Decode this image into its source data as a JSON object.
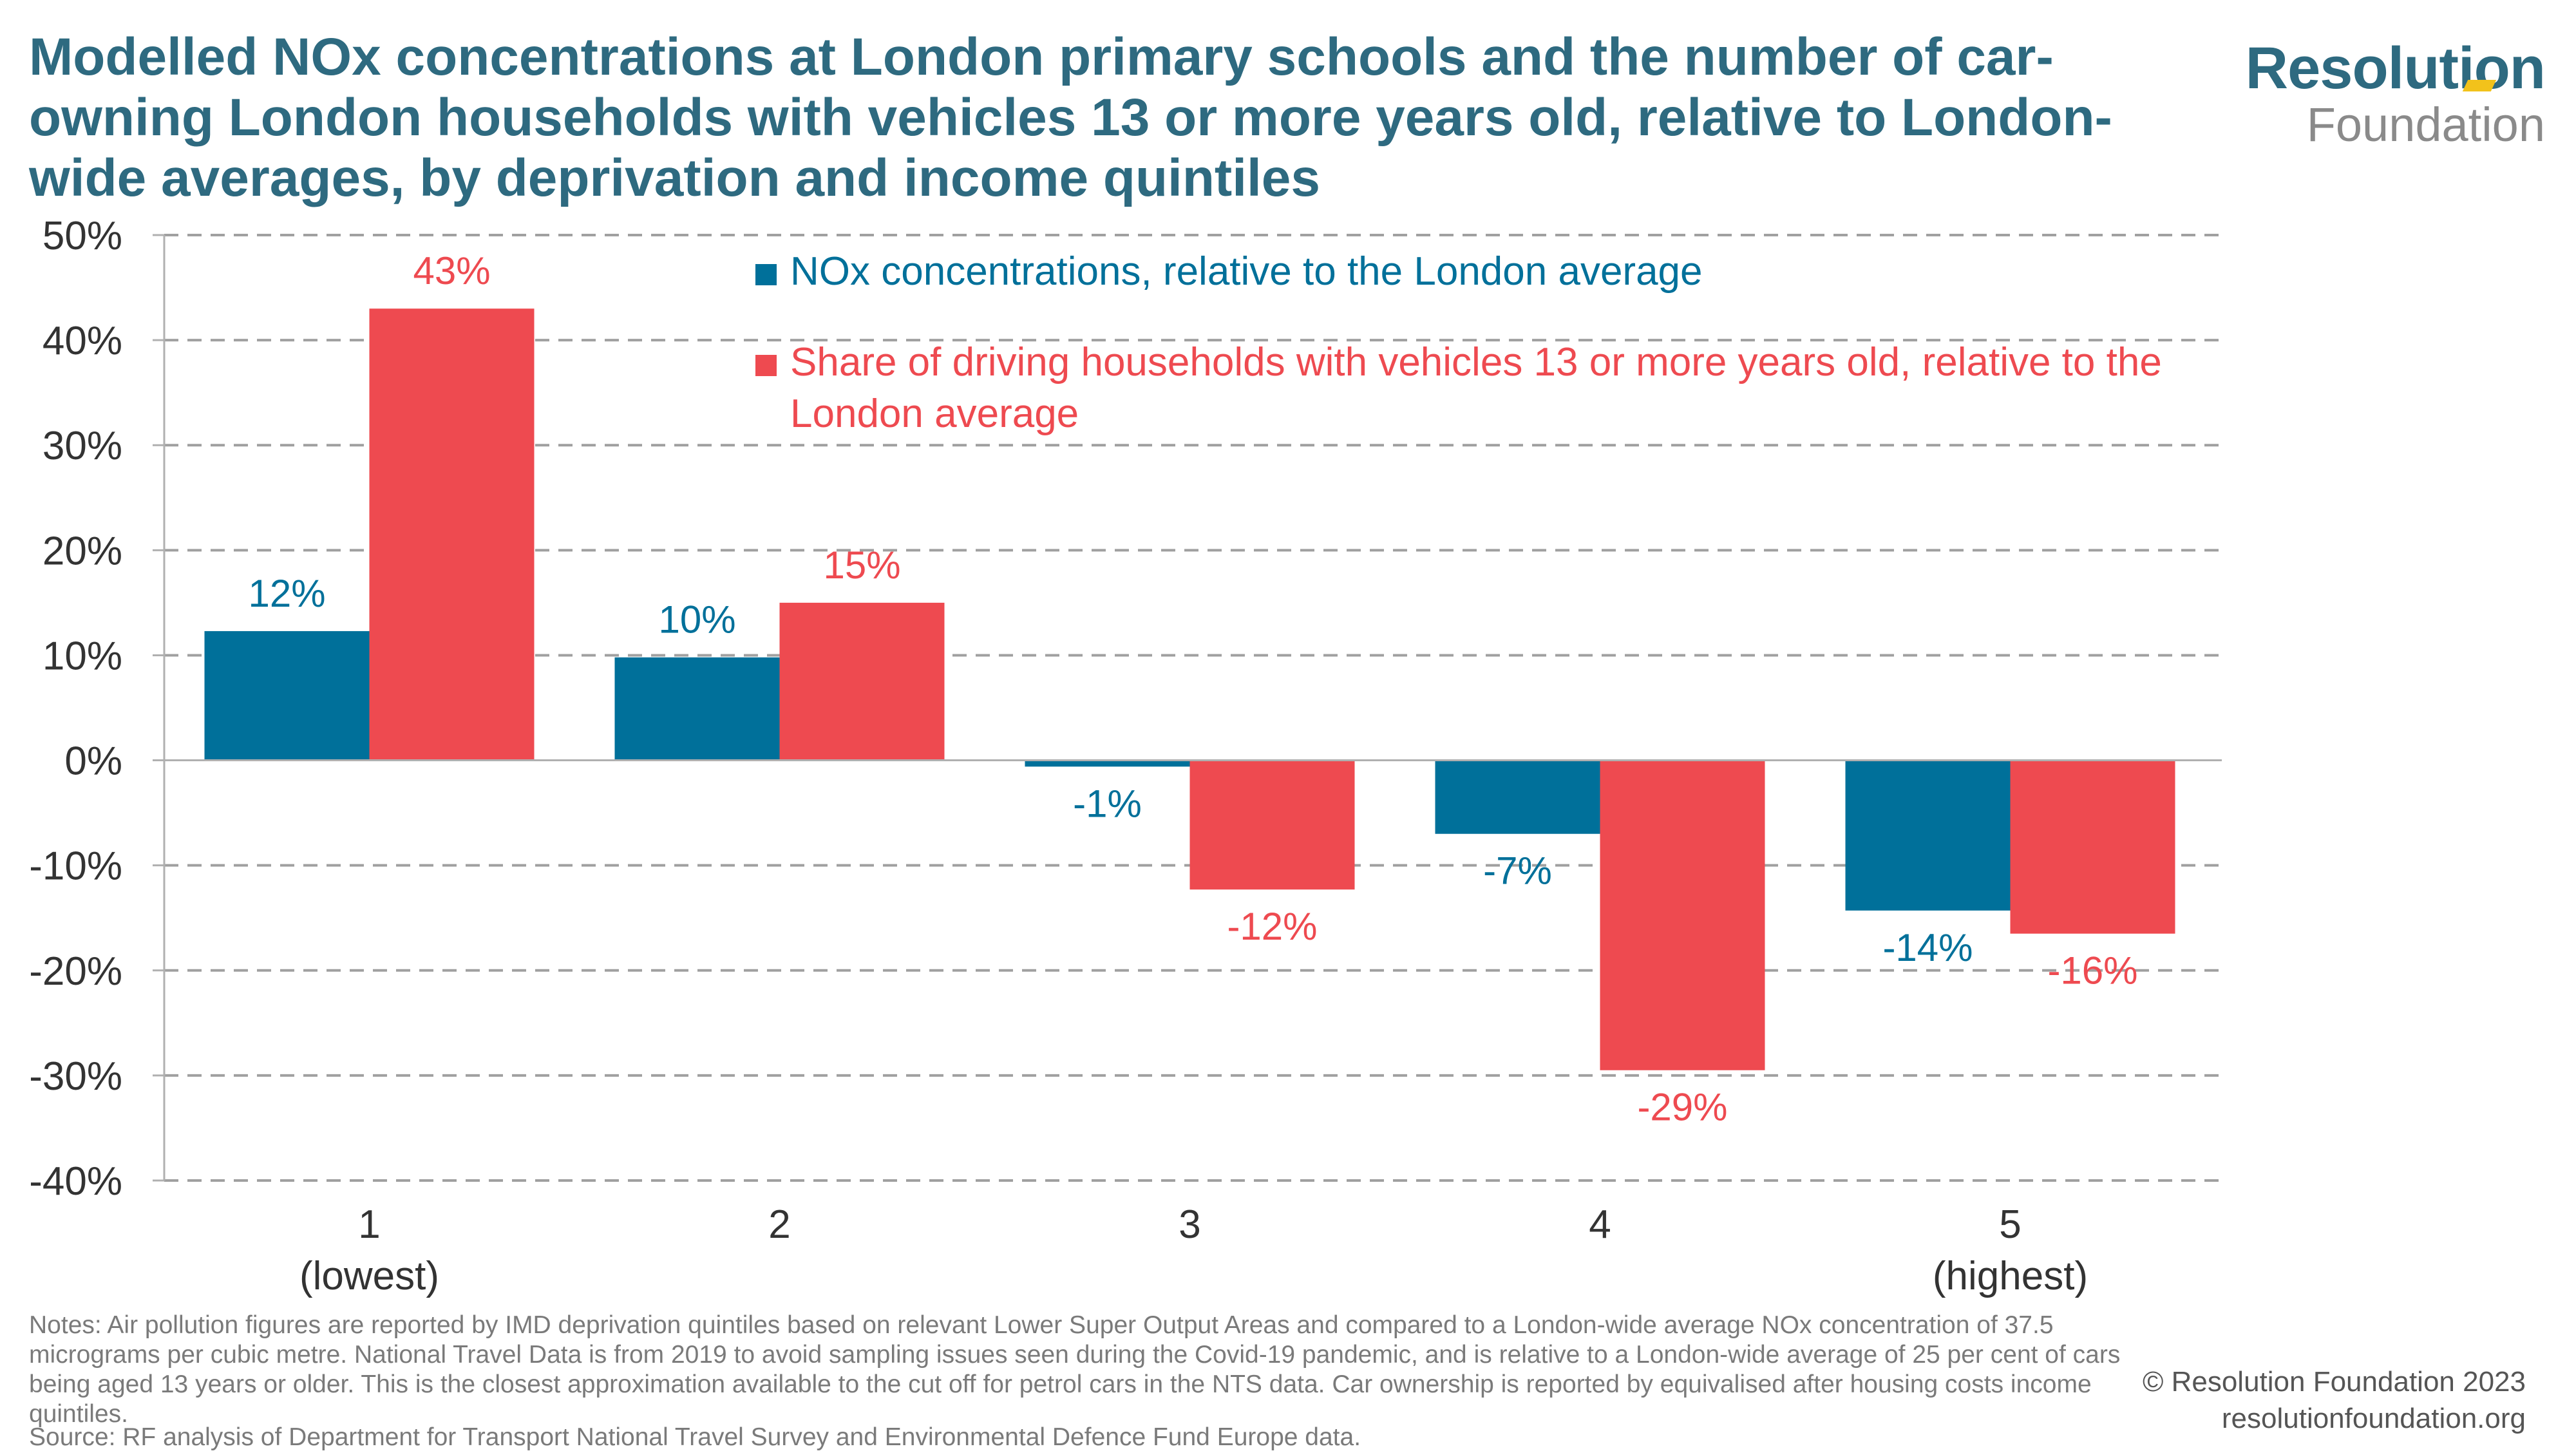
{
  "chart_data": {
    "type": "bar",
    "title": "Modelled NOx concentrations at London primary schools and the number of car-owning London households with vehicles 13 or more years old, relative to London-wide averages, by deprivation and income quintiles",
    "categories": [
      "1",
      "2",
      "3",
      "4",
      "5"
    ],
    "category_sublabels": [
      "(lowest)",
      "",
      "",
      "",
      "(highest)"
    ],
    "series": [
      {
        "name": "NOx concentrations, relative to the London average",
        "color": "#00709A",
        "values": [
          12.3,
          9.8,
          -0.6,
          -7.0,
          -14.3
        ],
        "labels": [
          "12%",
          "10%",
          "-1%",
          "-7%",
          "-14%"
        ]
      },
      {
        "name": "Share of driving households with vehicles 13 or more years old, relative to the London average",
        "color": "#EE4A50",
        "values": [
          43.0,
          15.0,
          -12.3,
          -29.5,
          -16.5
        ],
        "labels": [
          "43%",
          "15%",
          "-12%",
          "-29%",
          "-16%"
        ]
      }
    ],
    "ylim": [
      -40,
      50
    ],
    "yticks": [
      "-40%",
      "-30%",
      "-20%",
      "-10%",
      "0%",
      "10%",
      "20%",
      "30%",
      "40%",
      "50%"
    ],
    "grid": true,
    "legend_position": "top-center"
  },
  "legend": {
    "nox": "NOx concentrations, relative to the London average",
    "vehicles_line1": "Share of driving households with vehicles 13 or more years old, relative to the",
    "vehicles_line2": "London average"
  },
  "branding": {
    "logo_top": "Resolution",
    "logo_bottom": "Foundation"
  },
  "footer": {
    "notes": "Notes: Air pollution figures are reported by IMD deprivation quintiles based on relevant Lower Super Output Areas and compared to a London-wide average NOx concentration of 37.5 micrograms per cubic metre. National Travel Data is from 2019 to avoid sampling issues seen during the Covid-19 pandemic, and is relative to a London-wide average of 25 per cent of cars being aged 13 years or older. This is the closest approximation available to the cut off for petrol cars in the NTS data. Car ownership is reported by equivalised after housing costs income quintiles.",
    "source": "Source: RF analysis of Department for Transport National Travel Survey and Environmental Defence Fund Europe data.",
    "copyright": "© Resolution Foundation 2023",
    "website": "resolutionfoundation.org"
  }
}
